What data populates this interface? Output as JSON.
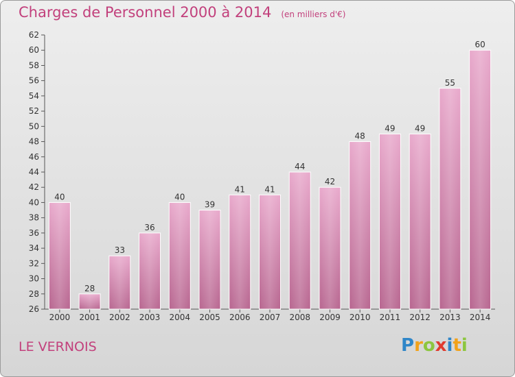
{
  "chart_data": {
    "type": "bar",
    "title": "Charges de Personnel 2000 à 2014",
    "subtitle": "(en milliers d'€)",
    "xlabel": "",
    "ylabel": "",
    "categories": [
      "2000",
      "2001",
      "2002",
      "2003",
      "2004",
      "2005",
      "2006",
      "2007",
      "2008",
      "2009",
      "2010",
      "2011",
      "2012",
      "2013",
      "2014"
    ],
    "values": [
      40,
      28,
      33,
      36,
      40,
      39,
      41,
      41,
      44,
      42,
      48,
      49,
      49,
      55,
      60
    ],
    "ylim": [
      26,
      62
    ],
    "yticks": [
      26,
      28,
      30,
      32,
      34,
      36,
      38,
      40,
      42,
      44,
      46,
      48,
      50,
      52,
      54,
      56,
      58,
      60,
      62
    ],
    "grid": false,
    "bar_color": "#d88bb4"
  },
  "footer": {
    "commune": "LE VERNOIS",
    "brand_letters": [
      {
        "ch": "P",
        "color": "#2f86c8"
      },
      {
        "ch": "r",
        "color": "#f2a21a"
      },
      {
        "ch": "o",
        "color": "#8cc63f"
      },
      {
        "ch": "x",
        "color": "#e03b2e"
      },
      {
        "ch": "i",
        "color": "#2f86c8"
      },
      {
        "ch": "t",
        "color": "#f2a21a"
      },
      {
        "ch": "i",
        "color": "#8cc63f"
      }
    ]
  }
}
